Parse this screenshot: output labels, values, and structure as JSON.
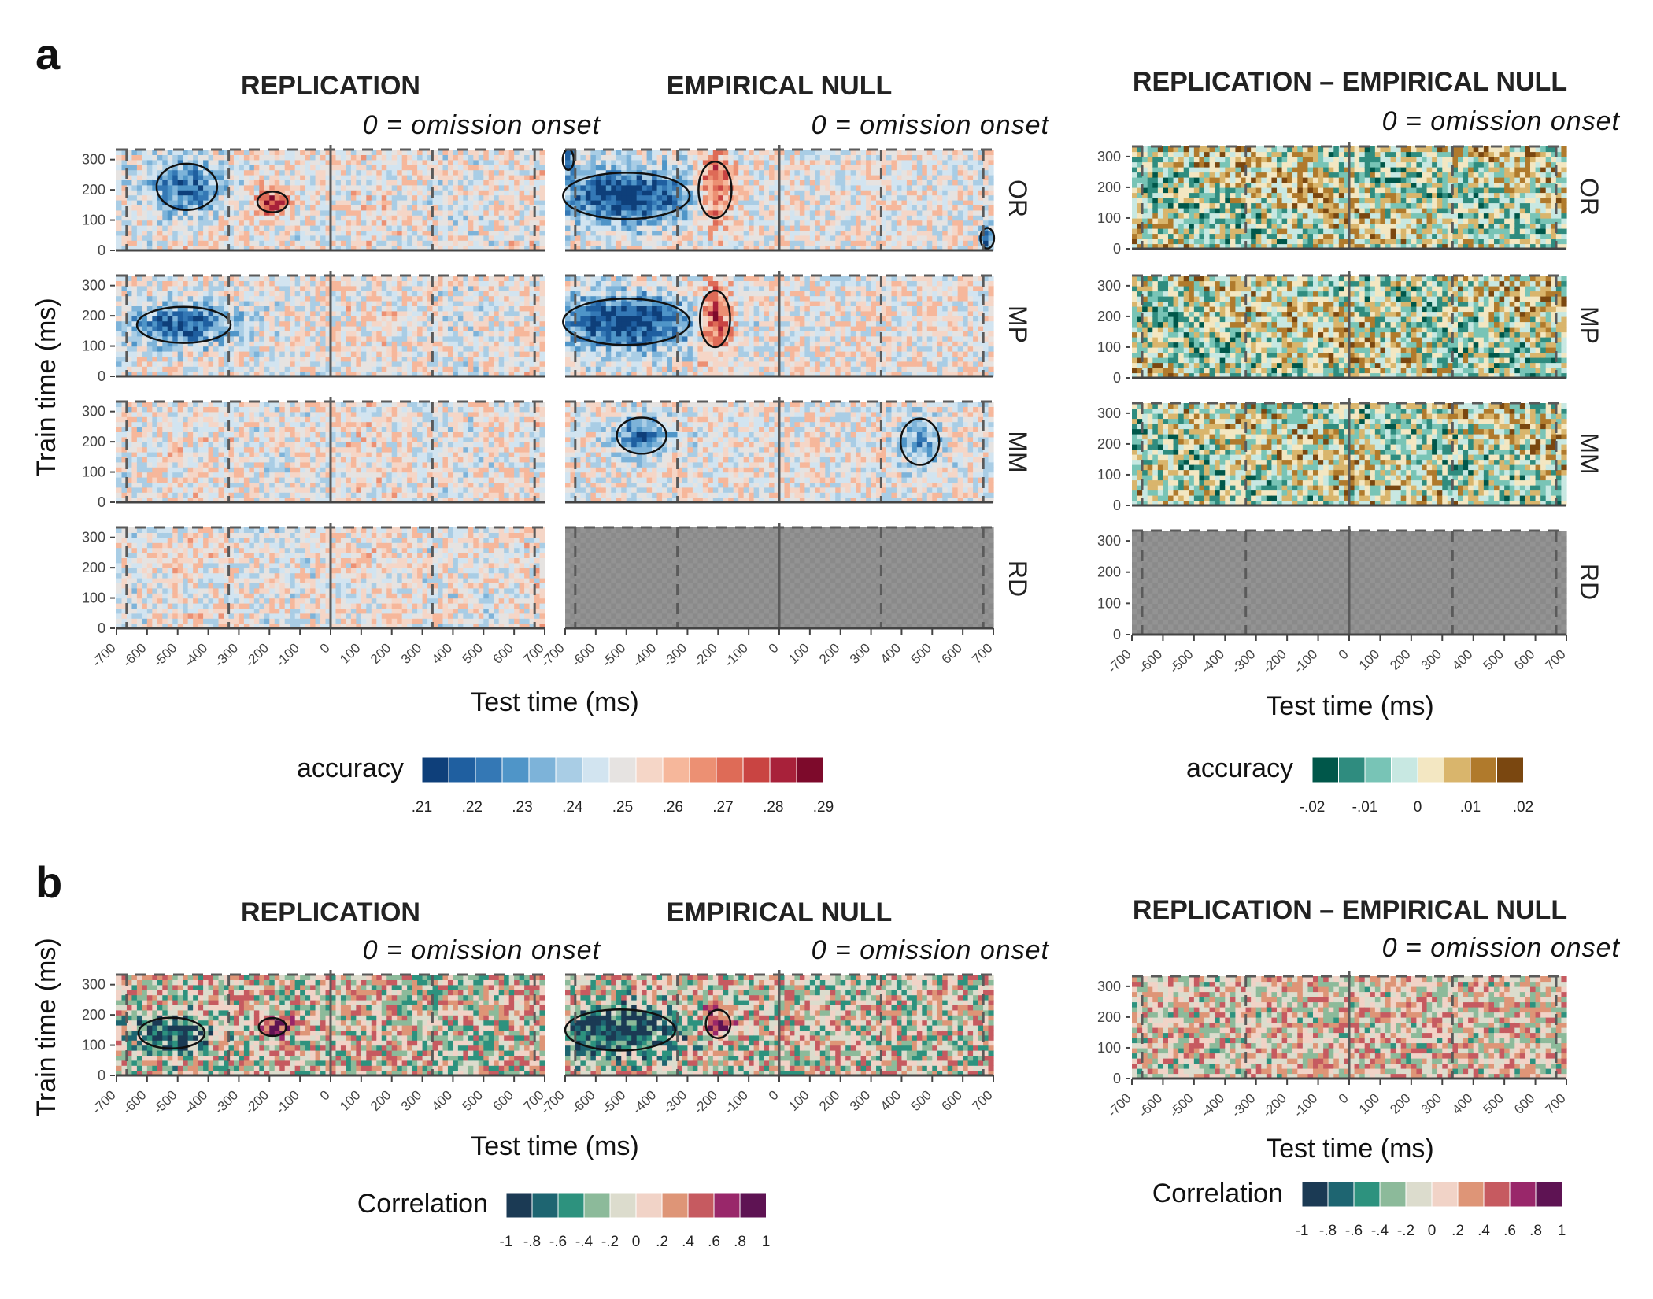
{
  "panels": [
    {
      "letter": "a",
      "columns": [
        "REPLICATION",
        "EMPIRICAL NULL",
        "REPLICATION – EMPIRICAL NULL"
      ],
      "onset_label": "0 = omission onset",
      "rows": [
        "OR",
        "MP",
        "MM",
        "RD"
      ],
      "y_axis_label": "Train time (ms)",
      "x_axis_label": "Test time (ms)",
      "legend_left": {
        "title": "accuracy",
        "labels": [
          ".21",
          ".22",
          ".23",
          ".24",
          ".25",
          ".26",
          ".27",
          ".28",
          ".29"
        ],
        "colors": [
          "#0e3f7a",
          "#1f5fa0",
          "#3478b5",
          "#4f95c8",
          "#7db3d9",
          "#a9cde5",
          "#d2e4f0",
          "#e6e3e1",
          "#f5d6c7",
          "#f6b79b",
          "#ec9073",
          "#de6b57",
          "#c94442",
          "#a8213a",
          "#7d0a2b"
        ]
      },
      "legend_right": {
        "title": "accuracy",
        "labels": [
          "-.02",
          "-.01",
          "0",
          ".01",
          ".02"
        ],
        "colors": [
          "#00574a",
          "#2f8c7f",
          "#78c4b6",
          "#c8e8e2",
          "#f3e7c2",
          "#d9b56c",
          "#b07a2c",
          "#7a4710"
        ]
      }
    },
    {
      "letter": "b",
      "columns": [
        "REPLICATION",
        "EMPIRICAL NULL",
        "REPLICATION – EMPIRICAL NULL"
      ],
      "onset_label": "0 = omission onset",
      "y_axis_label": "Train time (ms)",
      "x_axis_label": "Test time (ms)",
      "legend_left": {
        "title": "Correlation",
        "labels": [
          "-1",
          "-.8",
          "-.6",
          "-.4",
          "-.2",
          "0",
          ".2",
          ".4",
          ".6",
          ".8",
          "1"
        ],
        "colors": [
          "#1b3a54",
          "#1e6571",
          "#2d927e",
          "#8cba9a",
          "#dcdccd",
          "#f1d3c7",
          "#de9577",
          "#c65a60",
          "#99276a",
          "#5e1353"
        ]
      },
      "legend_right": {
        "title": "Correlation",
        "labels": [
          "-1",
          "-.8",
          "-.6",
          "-.4",
          "-.2",
          "0",
          ".2",
          ".4",
          ".6",
          ".8",
          "1"
        ],
        "colors": [
          "#1b3a54",
          "#1e6571",
          "#2d927e",
          "#8cba9a",
          "#dcdccd",
          "#f1d3c7",
          "#de9577",
          "#c65a60",
          "#99276a",
          "#5e1353"
        ]
      }
    }
  ],
  "chart_data": {
    "type": "heatmap",
    "x_label": "Test time (ms)",
    "y_label": "Train time (ms)",
    "x_ticks": [
      -700,
      -600,
      -500,
      -400,
      -300,
      -200,
      -100,
      0,
      100,
      200,
      300,
      400,
      500,
      600,
      700
    ],
    "y_ticks": [
      0,
      100,
      200,
      300
    ],
    "x_range": [
      -700,
      700
    ],
    "y_range": [
      0,
      333
    ],
    "vertical_reference_lines": {
      "solid": [
        0
      ],
      "dashed": [
        -667,
        -333,
        333,
        667
      ]
    },
    "horizontal_reference_line_dashed": 333
  }
}
